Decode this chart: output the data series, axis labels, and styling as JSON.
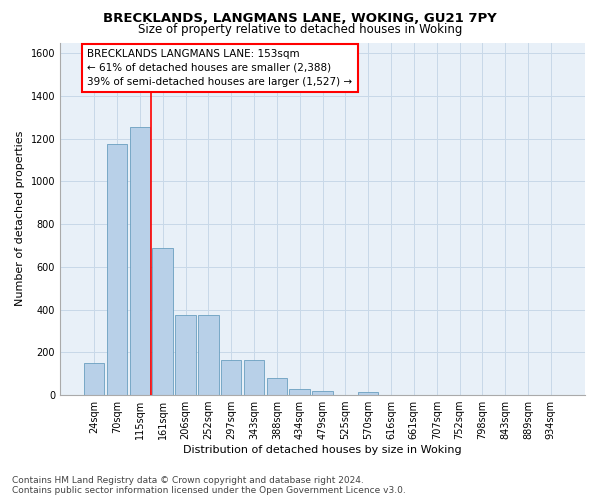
{
  "title1": "BRECKLANDS, LANGMANS LANE, WOKING, GU21 7PY",
  "title2": "Size of property relative to detached houses in Woking",
  "xlabel": "Distribution of detached houses by size in Woking",
  "ylabel": "Number of detached properties",
  "categories": [
    "24sqm",
    "70sqm",
    "115sqm",
    "161sqm",
    "206sqm",
    "252sqm",
    "297sqm",
    "343sqm",
    "388sqm",
    "434sqm",
    "479sqm",
    "525sqm",
    "570sqm",
    "616sqm",
    "661sqm",
    "707sqm",
    "752sqm",
    "798sqm",
    "843sqm",
    "889sqm",
    "934sqm"
  ],
  "values": [
    150,
    1175,
    1255,
    690,
    375,
    375,
    165,
    165,
    80,
    30,
    20,
    0,
    15,
    0,
    0,
    0,
    0,
    0,
    0,
    0,
    0
  ],
  "bar_color": "#b8d0e8",
  "bar_edge_color": "#6a9fc0",
  "vline_color": "red",
  "vline_x": 2.5,
  "annotation_text": "BRECKLANDS LANGMANS LANE: 153sqm\n← 61% of detached houses are smaller (2,388)\n39% of semi-detached houses are larger (1,527) →",
  "annotation_box_facecolor": "white",
  "annotation_box_edgecolor": "red",
  "ylim": [
    0,
    1650
  ],
  "yticks": [
    0,
    200,
    400,
    600,
    800,
    1000,
    1200,
    1400,
    1600
  ],
  "grid_color": "#c8d8e8",
  "bg_color": "#e8f0f8",
  "footnote": "Contains HM Land Registry data © Crown copyright and database right 2024.\nContains public sector information licensed under the Open Government Licence v3.0.",
  "title1_fontsize": 9.5,
  "title2_fontsize": 8.5,
  "xlabel_fontsize": 8,
  "ylabel_fontsize": 8,
  "tick_fontsize": 7,
  "annot_fontsize": 7.5,
  "footnote_fontsize": 6.5
}
